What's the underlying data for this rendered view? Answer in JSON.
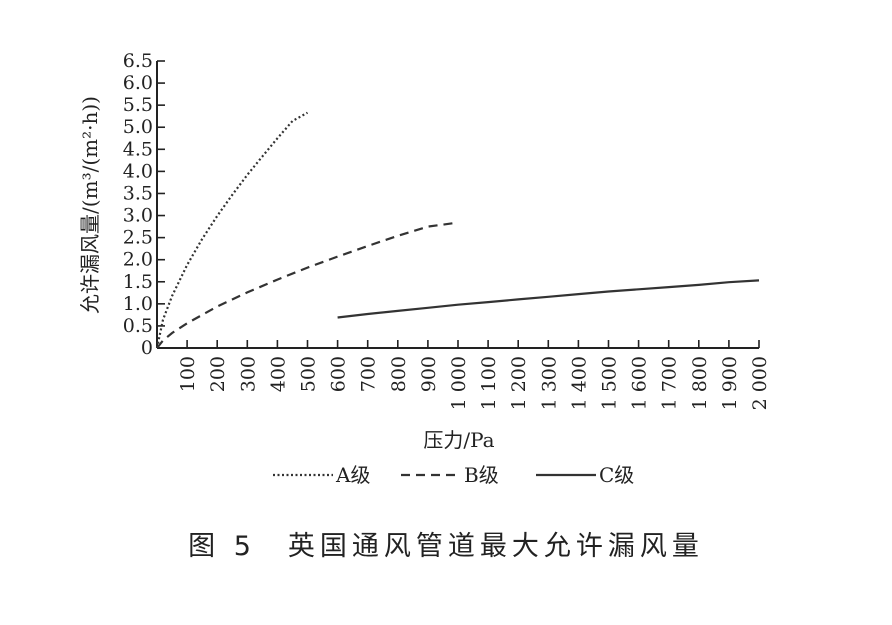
{
  "caption": "图 5　英国通风管道最大允许漏风量",
  "chart_data": {
    "type": "line",
    "xlabel": "压力/Pa",
    "ylabel": "允许漏风量/(m³/(m²·h))",
    "xlim": [
      0,
      2000
    ],
    "ylim": [
      0,
      6.5
    ],
    "x_ticks": [
      "100",
      "200",
      "300",
      "400",
      "500",
      "600",
      "700",
      "800",
      "900",
      "1 000",
      "1 100",
      "1 200",
      "1 300",
      "1 400",
      "1 500",
      "1 600",
      "1 700",
      "1 800",
      "1 900",
      "2 000"
    ],
    "y_ticks": [
      "0",
      "0.5",
      "1.0",
      "1.5",
      "2.0",
      "2.5",
      "3.0",
      "3.5",
      "4.0",
      "4.5",
      "5.0",
      "5.5",
      "6.0",
      "6.5"
    ],
    "legend_placement": "bottom",
    "grid": false,
    "series": [
      {
        "name": "A级",
        "style": "dotted",
        "color": "#333333",
        "x": [
          0,
          20,
          50,
          100,
          150,
          200,
          250,
          300,
          350,
          400,
          450,
          500
        ],
        "y": [
          0,
          0.64,
          1.18,
          1.88,
          2.47,
          2.99,
          3.47,
          3.92,
          4.34,
          4.75,
          5.14,
          5.33
        ]
      },
      {
        "name": "B级",
        "style": "dashed",
        "color": "#333333",
        "x": [
          0,
          20,
          50,
          100,
          200,
          300,
          400,
          500,
          600,
          700,
          800,
          900,
          1000
        ],
        "y": [
          0,
          0.17,
          0.34,
          0.56,
          0.94,
          1.26,
          1.55,
          1.82,
          2.07,
          2.31,
          2.54,
          2.75,
          2.84
        ]
      },
      {
        "name": "C级",
        "style": "solid",
        "color": "#333333",
        "x": [
          600,
          700,
          800,
          900,
          1000,
          1100,
          1200,
          1300,
          1400,
          1500,
          1600,
          1700,
          1800,
          1900,
          2000
        ],
        "y": [
          0.69,
          0.77,
          0.84,
          0.91,
          0.98,
          1.04,
          1.1,
          1.16,
          1.22,
          1.28,
          1.33,
          1.38,
          1.43,
          1.49,
          1.53
        ]
      }
    ]
  }
}
